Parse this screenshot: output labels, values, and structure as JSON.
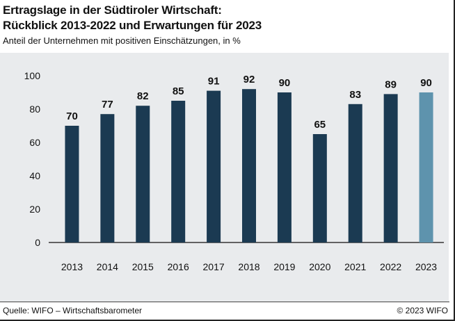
{
  "header": {
    "title_line1": "Ertragslage in der Südtiroler Wirtschaft:",
    "title_line2": "Rückblick 2013-2022 und Erwartungen für 2023",
    "subtitle": "Anteil der Unternehmen mit positiven Einschätzungen, in %"
  },
  "footer": {
    "source": "Quelle: WIFO – Wirtschaftsbarometer",
    "copyright": "© 2023 WIFO"
  },
  "colors": {
    "bar_actual": "#1b3a52",
    "bar_forecast": "#5e93ad",
    "background": "#e9ebed"
  },
  "chart_data": {
    "type": "bar",
    "title": "Ertragslage in der Südtiroler Wirtschaft: Rückblick 2013-2022 und Erwartungen für 2023",
    "subtitle": "Anteil der Unternehmen mit positiven Einschätzungen, in %",
    "categories": [
      "2013",
      "2014",
      "2015",
      "2016",
      "2017",
      "2018",
      "2019",
      "2020",
      "2021",
      "2022",
      "2023"
    ],
    "values": [
      70,
      77,
      82,
      85,
      91,
      92,
      90,
      65,
      83,
      89,
      90
    ],
    "forecast_categories": [
      "2023"
    ],
    "ylim": [
      0,
      100
    ],
    "yticks": [
      0,
      20,
      40,
      60,
      80,
      100
    ],
    "grid": false,
    "data_labels": true,
    "xlabel": "",
    "ylabel": ""
  }
}
